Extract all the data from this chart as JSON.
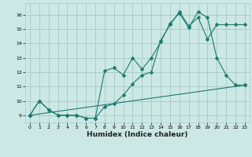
{
  "xlabel": "Humidex (Indice chaleur)",
  "bg_color": "#cce8e4",
  "grid_color": "#aaccca",
  "line_color": "#1a7a6e",
  "xlim": [
    -0.5,
    23.5
  ],
  "ylim": [
    8.5,
    16.8
  ],
  "xticks": [
    0,
    1,
    2,
    3,
    4,
    5,
    6,
    7,
    8,
    9,
    10,
    11,
    12,
    13,
    14,
    15,
    16,
    17,
    18,
    19,
    20,
    21,
    22,
    23
  ],
  "yticks": [
    9,
    10,
    11,
    12,
    13,
    14,
    15,
    16
  ],
  "line1_x": [
    0,
    1,
    2,
    3,
    4,
    5,
    6,
    7,
    8,
    9,
    10,
    11,
    12,
    13,
    14,
    15,
    16,
    17,
    18,
    19,
    20,
    21,
    22,
    23
  ],
  "line1_y": [
    9.0,
    10.0,
    9.4,
    9.0,
    9.0,
    9.0,
    8.8,
    8.8,
    12.1,
    12.3,
    11.8,
    13.0,
    12.2,
    13.0,
    14.1,
    15.4,
    16.1,
    15.1,
    16.2,
    15.8,
    13.0,
    11.8,
    11.1,
    11.1
  ],
  "line2_x": [
    0,
    1,
    2,
    3,
    4,
    5,
    6,
    7,
    8,
    9,
    10,
    11,
    12,
    13,
    14,
    15,
    16,
    17,
    18,
    19,
    20,
    21,
    22,
    23
  ],
  "line2_y": [
    9.0,
    10.0,
    9.4,
    9.0,
    9.0,
    9.0,
    8.8,
    8.8,
    9.6,
    9.8,
    10.4,
    11.2,
    11.8,
    12.0,
    14.2,
    15.3,
    16.2,
    15.2,
    15.8,
    14.3,
    15.3,
    15.3,
    15.3,
    15.3
  ],
  "line3_x": [
    0,
    23
  ],
  "line3_y": [
    9.0,
    11.1
  ]
}
